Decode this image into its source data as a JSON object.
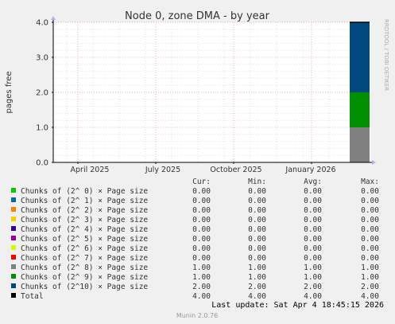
{
  "chart_data": {
    "type": "bar",
    "title": "Node 0, zone DMA - by year",
    "ylabel": "pages free",
    "side_label": "RRDTOOL / TOBI OETIKER",
    "ylim": [
      0,
      4
    ],
    "y_ticks": [
      "0.0",
      "1.0",
      "2.0",
      "3.0",
      "4.0"
    ],
    "x_ticks": [
      "April 2025",
      "July 2025",
      "October 2025",
      "January 2026"
    ],
    "grid": true,
    "stacked": true,
    "bar_at": "right edge (most recent)",
    "columns": [
      "Cur:",
      "Min:",
      "Avg:",
      "Max:"
    ],
    "series": [
      {
        "name": "Chunks of (2^ 0) × Page size",
        "color": "#00cc00",
        "cur": "0.00",
        "min": "0.00",
        "avg": "0.00",
        "max": "0.00",
        "value": 0
      },
      {
        "name": "Chunks of (2^ 1) × Page size",
        "color": "#0066b3",
        "cur": "0.00",
        "min": "0.00",
        "avg": "0.00",
        "max": "0.00",
        "value": 0
      },
      {
        "name": "Chunks of (2^ 2) × Page size",
        "color": "#ff8000",
        "cur": "0.00",
        "min": "0.00",
        "avg": "0.00",
        "max": "0.00",
        "value": 0
      },
      {
        "name": "Chunks of (2^ 3) × Page size",
        "color": "#ffcc00",
        "cur": "0.00",
        "min": "0.00",
        "avg": "0.00",
        "max": "0.00",
        "value": 0
      },
      {
        "name": "Chunks of (2^ 4) × Page size",
        "color": "#330099",
        "cur": "0.00",
        "min": "0.00",
        "avg": "0.00",
        "max": "0.00",
        "value": 0
      },
      {
        "name": "Chunks of (2^ 5) × Page size",
        "color": "#990099",
        "cur": "0.00",
        "min": "0.00",
        "avg": "0.00",
        "max": "0.00",
        "value": 0
      },
      {
        "name": "Chunks of (2^ 6) × Page size",
        "color": "#ccff00",
        "cur": "0.00",
        "min": "0.00",
        "avg": "0.00",
        "max": "0.00",
        "value": 0
      },
      {
        "name": "Chunks of (2^ 7) × Page size",
        "color": "#ff0000",
        "cur": "0.00",
        "min": "0.00",
        "avg": "0.00",
        "max": "0.00",
        "value": 0
      },
      {
        "name": "Chunks of (2^ 8) × Page size",
        "color": "#808080",
        "cur": "1.00",
        "min": "1.00",
        "avg": "1.00",
        "max": "1.00",
        "value": 1
      },
      {
        "name": "Chunks of (2^ 9) × Page size",
        "color": "#008f00",
        "cur": "1.00",
        "min": "1.00",
        "avg": "1.00",
        "max": "1.00",
        "value": 1
      },
      {
        "name": "Chunks of (2^10) × Page size",
        "color": "#00487d",
        "cur": "2.00",
        "min": "2.00",
        "avg": "2.00",
        "max": "2.00",
        "value": 2
      }
    ],
    "total": {
      "name": "Total",
      "color": "#000000",
      "cur": "4.00",
      "min": "4.00",
      "avg": "4.00",
      "max": "4.00"
    }
  },
  "last_update": "Last update: Sat Apr  4 18:45:15 2026",
  "footer": "Munin 2.0.76"
}
